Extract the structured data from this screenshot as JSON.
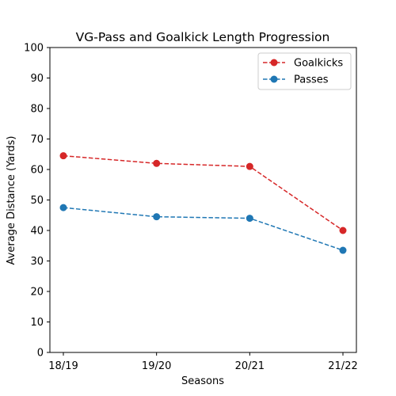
{
  "chart_data": {
    "type": "line",
    "title": "VG-Pass and Goalkick Length Progression",
    "xlabel": "Seasons",
    "ylabel": "Average Distance (Yards)",
    "categories": [
      "18/19",
      "19/20",
      "20/21",
      "21/22"
    ],
    "ylim": [
      0,
      100
    ],
    "yticks": [
      0,
      10,
      20,
      30,
      40,
      50,
      60,
      70,
      80,
      90,
      100
    ],
    "grid": false,
    "legend_position": "top-right",
    "series": [
      {
        "name": "Goalkicks",
        "color": "#d62728",
        "line_style": "dashed",
        "marker": "circle",
        "values": [
          64.5,
          62.0,
          61.0,
          40.0
        ]
      },
      {
        "name": "Passes",
        "color": "#1f77b4",
        "line_style": "dashed",
        "marker": "circle",
        "values": [
          47.5,
          44.5,
          44.0,
          33.5
        ]
      }
    ]
  }
}
